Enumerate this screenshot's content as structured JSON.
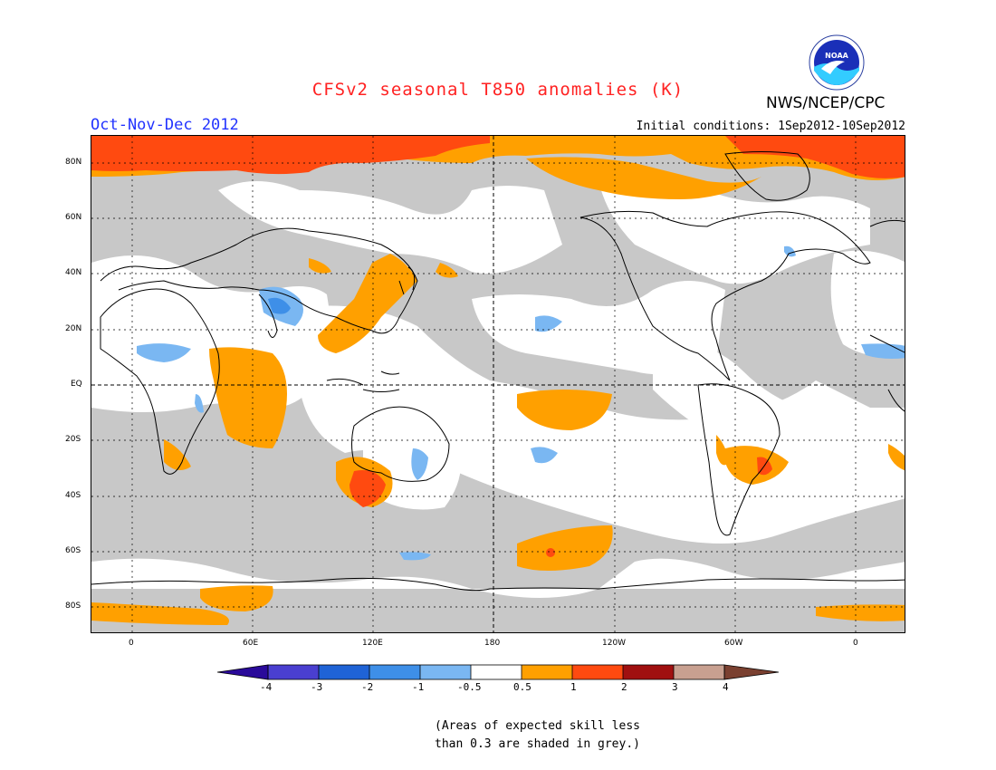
{
  "header": {
    "title": "CFSv2 seasonal T850 anomalies (K)",
    "season": "Oct-Nov-Dec 2012",
    "initial_conditions": "Initial conditions: 1Sep2012-10Sep2012",
    "agency": "NWS/NCEP/CPC",
    "logo_text": "NOAA"
  },
  "map": {
    "lat_labels": [
      "80N",
      "60N",
      "40N",
      "20N",
      "EQ",
      "20S",
      "40S",
      "60S",
      "80S"
    ],
    "lon_labels": [
      "0",
      "60E",
      "120E",
      "180",
      "120W",
      "60W",
      "0"
    ],
    "background_color": "#c8c8c8"
  },
  "colorbar": {
    "labels": [
      "-4",
      "-3",
      "-2",
      "-1",
      "-0.5",
      "0.5",
      "1",
      "2",
      "3",
      "4"
    ],
    "colors": [
      "#2a0a9a",
      "#4a3fd0",
      "#1f63d6",
      "#3e8fe8",
      "#7ab7f2",
      "#ffffff",
      "#ffa000",
      "#ff4a10",
      "#a01010",
      "#c8a090",
      "#7a4030"
    ]
  },
  "note": {
    "line1": "(Areas of expected skill less",
    "line2": "than 0.3 are shaded in grey.)"
  }
}
